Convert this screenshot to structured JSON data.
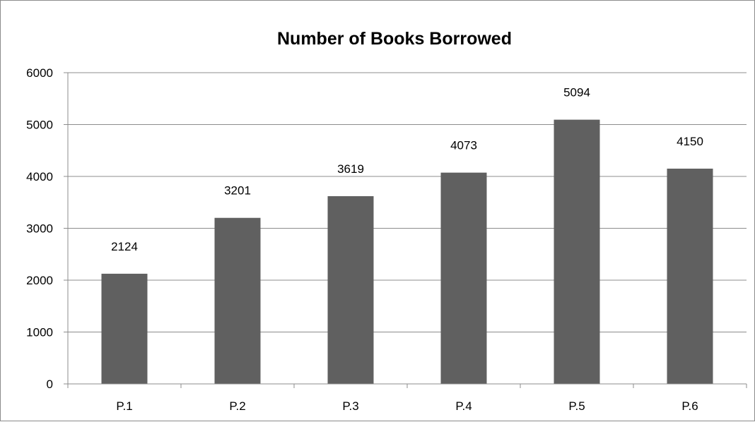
{
  "chart_data": {
    "type": "bar",
    "title": "Number of Books Borrowed",
    "xlabel": "",
    "ylabel": "",
    "categories": [
      "P.1",
      "P.2",
      "P.3",
      "P.4",
      "P.5",
      "P.6"
    ],
    "values": [
      2124,
      3201,
      3619,
      4073,
      5094,
      4150
    ],
    "ylim": [
      0,
      6000
    ],
    "yticks": [
      0,
      1000,
      2000,
      3000,
      4000,
      5000,
      6000
    ],
    "data_labels": true,
    "grid": true,
    "legend": "none",
    "colors": {
      "bar": "#606060",
      "grid": "#8c8c8c",
      "axis": "#8c8c8c"
    }
  }
}
